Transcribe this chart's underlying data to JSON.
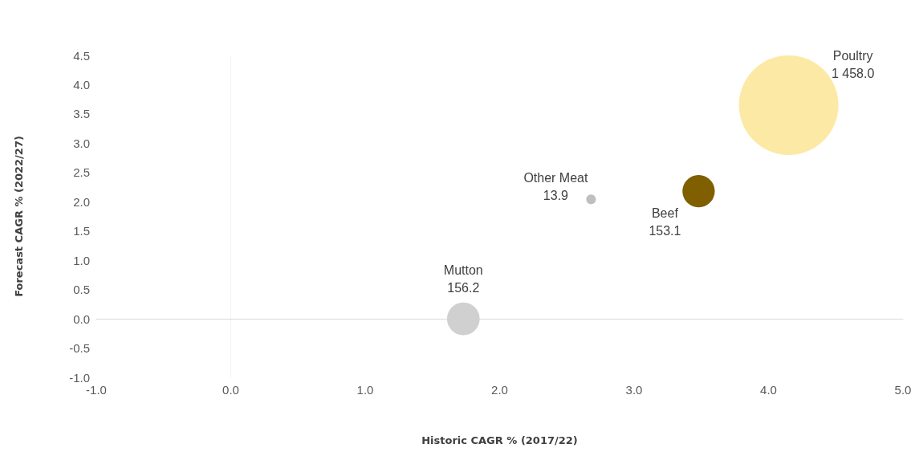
{
  "chart_data": {
    "type": "bubble",
    "xlabel": "Historic CAGR % (2017/22)",
    "ylabel": "Forecast CAGR % (2022/27)",
    "xlim": [
      -1.0,
      5.0
    ],
    "xticks": [
      {
        "value": -1,
        "label": "-1.0"
      },
      {
        "value": 0,
        "label": "0.0"
      },
      {
        "value": 1,
        "label": "1.0"
      },
      {
        "value": 2,
        "label": "2.0"
      },
      {
        "value": 3,
        "label": "3.0"
      },
      {
        "value": 4,
        "label": "4.0"
      },
      {
        "value": 5,
        "label": "5.0"
      }
    ],
    "ylim": [
      -1.0,
      4.5
    ],
    "yticks": [
      {
        "value": -1,
        "label": "-1.0"
      },
      {
        "value": -0.5,
        "label": "-0.5"
      },
      {
        "value": 0,
        "label": "0.0"
      },
      {
        "value": 0.5,
        "label": "0.5"
      },
      {
        "value": 1,
        "label": "1.0"
      },
      {
        "value": 1.5,
        "label": "1.5"
      },
      {
        "value": 2,
        "label": "2.0"
      },
      {
        "value": 2.5,
        "label": "2.5"
      },
      {
        "value": 3,
        "label": "3.0"
      },
      {
        "value": 3.5,
        "label": "3.5"
      },
      {
        "value": 4,
        "label": "4.0"
      },
      {
        "value": 4.5,
        "label": "4.5"
      }
    ],
    "series": [
      {
        "name": "Poultry",
        "color": "#fde9a6",
        "x": [
          4.15
        ],
        "values": [
          3.65
        ],
        "sizes": [
          1458.0
        ],
        "value_labels": [
          "1 458.0"
        ]
      },
      {
        "name": "Other Meat",
        "color": "#bfbfbf",
        "x": [
          2.68
        ],
        "values": [
          2.04
        ],
        "sizes": [
          13.9
        ],
        "value_labels": [
          "13.9"
        ]
      },
      {
        "name": "Beef",
        "color": "#7f5f00",
        "x": [
          3.48
        ],
        "values": [
          2.18
        ],
        "sizes": [
          153.1
        ],
        "value_labels": [
          "153.1"
        ]
      },
      {
        "name": "Mutton",
        "color": "#d0d0d0",
        "x": [
          1.73
        ],
        "values": [
          0.0
        ],
        "sizes": [
          156.2
        ],
        "value_labels": [
          "156.2"
        ]
      }
    ]
  }
}
